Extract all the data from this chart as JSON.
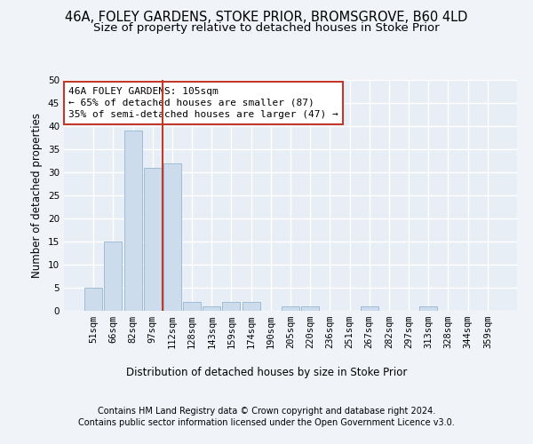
{
  "title1": "46A, FOLEY GARDENS, STOKE PRIOR, BROMSGROVE, B60 4LD",
  "title2": "Size of property relative to detached houses in Stoke Prior",
  "xlabel": "Distribution of detached houses by size in Stoke Prior",
  "ylabel": "Number of detached properties",
  "bar_labels": [
    "51sqm",
    "66sqm",
    "82sqm",
    "97sqm",
    "112sqm",
    "128sqm",
    "143sqm",
    "159sqm",
    "174sqm",
    "190sqm",
    "205sqm",
    "220sqm",
    "236sqm",
    "251sqm",
    "267sqm",
    "282sqm",
    "297sqm",
    "313sqm",
    "328sqm",
    "344sqm",
    "359sqm"
  ],
  "bar_values": [
    5,
    15,
    39,
    31,
    32,
    2,
    1,
    2,
    2,
    0,
    1,
    1,
    0,
    0,
    1,
    0,
    0,
    1,
    0,
    0,
    0
  ],
  "bar_color": "#ccdcec",
  "bar_edge_color": "#a0bcd4",
  "vline_x": 3.5,
  "vline_color": "#c0392b",
  "annotation_text": "46A FOLEY GARDENS: 105sqm\n← 65% of detached houses are smaller (87)\n35% of semi-detached houses are larger (47) →",
  "annotation_box_color": "white",
  "annotation_box_edge_color": "#c0392b",
  "ylim": [
    0,
    50
  ],
  "yticks": [
    0,
    5,
    10,
    15,
    20,
    25,
    30,
    35,
    40,
    45,
    50
  ],
  "footer1": "Contains HM Land Registry data © Crown copyright and database right 2024.",
  "footer2": "Contains public sector information licensed under the Open Government Licence v3.0.",
  "fig_facecolor": "#f0f4f8",
  "plot_bg_color": "#e8eef5",
  "grid_color": "#ffffff",
  "title_fontsize": 10.5,
  "subtitle_fontsize": 9.5,
  "axis_label_fontsize": 8.5,
  "tick_fontsize": 7.5,
  "footer_fontsize": 7.0,
  "annotation_fontsize": 8.0
}
